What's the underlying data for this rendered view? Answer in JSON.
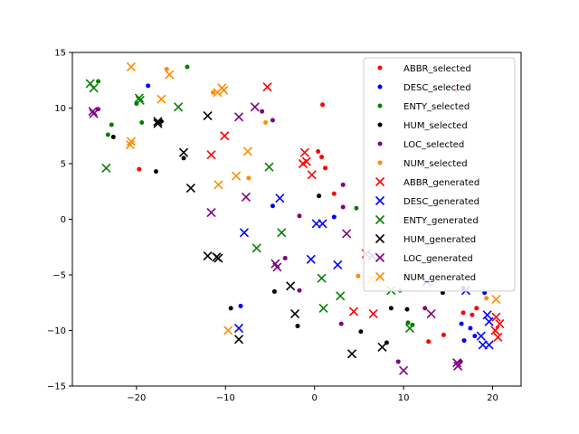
{
  "chart_data": {
    "type": "scatter",
    "title": "",
    "xlabel": "",
    "ylabel": "",
    "xlim": [
      -27.2,
      23.2
    ],
    "ylim": [
      -15,
      15
    ],
    "x_ticks": [
      -20,
      -10,
      0,
      10,
      20
    ],
    "y_ticks": [
      -15,
      -10,
      -5,
      0,
      5,
      10,
      15
    ],
    "x_tick_labels": [
      "−20",
      "−10",
      "0",
      "10",
      "20"
    ],
    "y_tick_labels": [
      "−15",
      "−10",
      "−5",
      "0",
      "5",
      "10",
      "15"
    ],
    "grid": false,
    "legend_position": "upper-right",
    "series": [
      {
        "name": "ABBR_selected",
        "marker": "dot",
        "color": "#ff0000",
        "points": [
          [
            0.4,
            6.1
          ],
          [
            0.8,
            5.6
          ],
          [
            1.2,
            4.6
          ],
          [
            2.2,
            2.3
          ],
          [
            0.9,
            10.3
          ],
          [
            -19.7,
            4.5
          ],
          [
            15.9,
            11.6
          ],
          [
            17.7,
            -8.6
          ],
          [
            18.2,
            -8.0
          ],
          [
            12.8,
            -11.0
          ],
          [
            14.5,
            -10.4
          ],
          [
            16.7,
            -8.4
          ]
        ]
      },
      {
        "name": "DESC_selected",
        "marker": "dot",
        "color": "#0000ff",
        "points": [
          [
            -18.7,
            12.0
          ],
          [
            -4.7,
            1.2
          ],
          [
            2.2,
            0.2
          ],
          [
            17.5,
            -9.8
          ],
          [
            18.0,
            -10.5
          ],
          [
            16.5,
            -9.4
          ],
          [
            16.8,
            -10.9
          ],
          [
            -8.3,
            -7.8
          ],
          [
            19.1,
            -6.6
          ]
        ]
      },
      {
        "name": "ENTY_selected",
        "marker": "dot",
        "color": "#008000",
        "points": [
          [
            -24.3,
            12.4
          ],
          [
            -23.2,
            7.6
          ],
          [
            -22.8,
            8.5
          ],
          [
            -20.0,
            10.4
          ],
          [
            -19.4,
            8.7
          ],
          [
            -14.3,
            13.7
          ],
          [
            4.7,
            1.0
          ],
          [
            11.0,
            -9.5
          ],
          [
            9.6,
            -6.4
          ],
          [
            10.5,
            -9.3
          ]
        ]
      },
      {
        "name": "HUM_selected",
        "marker": "dot",
        "color": "#000000",
        "points": [
          [
            -22.6,
            7.4
          ],
          [
            -17.8,
            4.3
          ],
          [
            -17.2,
            8.8
          ],
          [
            -14.7,
            5.5
          ],
          [
            0.5,
            2.1
          ],
          [
            -9.4,
            -8.0
          ],
          [
            -4.5,
            -6.5
          ],
          [
            -1.9,
            -9.6
          ],
          [
            5.2,
            -10.1
          ],
          [
            8.1,
            -11.1
          ],
          [
            8.6,
            -8.0
          ],
          [
            10.4,
            -8.1
          ],
          [
            14.4,
            -6.6
          ],
          [
            16.7,
            -6.2
          ]
        ]
      },
      {
        "name": "LOC_selected",
        "marker": "dot",
        "color": "#800080",
        "points": [
          [
            -24.3,
            9.9
          ],
          [
            -5.9,
            9.7
          ],
          [
            -4.7,
            8.9
          ],
          [
            -1.7,
            0.3
          ],
          [
            -1.7,
            -6.4
          ],
          [
            -3.3,
            -3.5
          ],
          [
            3.2,
            3.1
          ],
          [
            3.2,
            1.1
          ],
          [
            3.0,
            -9.4
          ],
          [
            9.4,
            -12.8
          ],
          [
            12.4,
            -8.0
          ],
          [
            16.4,
            -12.8
          ]
        ]
      },
      {
        "name": "NUM_selected",
        "marker": "dot",
        "color": "#ff8c00",
        "points": [
          [
            -16.6,
            13.5
          ],
          [
            -11.4,
            11.4
          ],
          [
            -7.4,
            3.7
          ],
          [
            -5.5,
            8.7
          ],
          [
            4.9,
            -5.1
          ],
          [
            19.3,
            -7.1
          ]
        ]
      },
      {
        "name": "ABBR_generated",
        "marker": "x",
        "color": "#ff0000",
        "points": [
          [
            -5.3,
            11.9
          ],
          [
            -10.1,
            7.5
          ],
          [
            -11.6,
            5.8
          ],
          [
            -1.1,
            6.0
          ],
          [
            -0.9,
            5.2
          ],
          [
            -1.3,
            5.0
          ],
          [
            -0.3,
            4.0
          ],
          [
            5.8,
            -3.1
          ],
          [
            4.4,
            -8.3
          ],
          [
            6.6,
            -8.5
          ],
          [
            20.4,
            -8.8
          ],
          [
            20.8,
            -9.4
          ],
          [
            20.3,
            -10.0
          ],
          [
            20.6,
            -10.6
          ]
        ]
      },
      {
        "name": "DESC_generated",
        "marker": "x",
        "color": "#0000ff",
        "points": [
          [
            -3.9,
            1.9
          ],
          [
            -7.9,
            -1.2
          ],
          [
            0.2,
            -0.4
          ],
          [
            0.9,
            -0.4
          ],
          [
            -0.4,
            -3.6
          ],
          [
            2.6,
            -4.1
          ],
          [
            6.5,
            -3.3
          ],
          [
            12.6,
            -5.6
          ],
          [
            17.0,
            -6.4
          ],
          [
            -8.5,
            -9.8
          ],
          [
            19.4,
            -8.6
          ],
          [
            19.6,
            -9.2
          ],
          [
            18.7,
            -10.5
          ],
          [
            18.9,
            -11.3
          ],
          [
            19.6,
            -11.3
          ]
        ]
      },
      {
        "name": "ENTY_generated",
        "marker": "x",
        "color": "#008000",
        "points": [
          [
            -25.2,
            12.2
          ],
          [
            -24.8,
            11.8
          ],
          [
            -19.6,
            10.7
          ],
          [
            -19.7,
            10.9
          ],
          [
            -15.3,
            10.1
          ],
          [
            -23.4,
            4.6
          ],
          [
            -5.1,
            4.7
          ],
          [
            -6.5,
            -2.6
          ],
          [
            -3.7,
            -1.2
          ],
          [
            0.8,
            -5.3
          ],
          [
            1.0,
            -8.0
          ],
          [
            2.9,
            -6.9
          ],
          [
            8.6,
            -6.4
          ],
          [
            10.7,
            -9.8
          ]
        ]
      },
      {
        "name": "HUM_generated",
        "marker": "x",
        "color": "#000000",
        "points": [
          [
            -17.6,
            8.8
          ],
          [
            -17.6,
            8.6
          ],
          [
            -12.0,
            9.3
          ],
          [
            -14.7,
            6.0
          ],
          [
            -13.9,
            2.8
          ],
          [
            -12.0,
            -3.3
          ],
          [
            -11.0,
            -3.4
          ],
          [
            -10.8,
            -3.5
          ],
          [
            -2.7,
            -6.0
          ],
          [
            -2.2,
            -8.5
          ],
          [
            -8.5,
            -10.8
          ],
          [
            4.2,
            -12.1
          ],
          [
            7.6,
            -11.5
          ]
        ]
      },
      {
        "name": "LOC_generated",
        "marker": "x",
        "color": "#800080",
        "points": [
          [
            -24.9,
            9.7
          ],
          [
            -24.8,
            9.5
          ],
          [
            -8.5,
            9.2
          ],
          [
            -6.7,
            10.1
          ],
          [
            -7.7,
            2.0
          ],
          [
            -11.6,
            0.6
          ],
          [
            -4.4,
            -4.0
          ],
          [
            -4.2,
            -4.3
          ],
          [
            3.6,
            -1.3
          ],
          [
            13.1,
            -8.5
          ],
          [
            10.0,
            -13.6
          ],
          [
            16.0,
            -12.9
          ],
          [
            16.1,
            -13.2
          ]
        ]
      },
      {
        "name": "NUM_generated",
        "marker": "x",
        "color": "#ff8c00",
        "points": [
          [
            -20.6,
            13.7
          ],
          [
            -16.3,
            13.0
          ],
          [
            -17.2,
            10.8
          ],
          [
            -20.6,
            7.0
          ],
          [
            -20.7,
            6.7
          ],
          [
            -10.4,
            11.8
          ],
          [
            -10.2,
            11.6
          ],
          [
            -10.9,
            11.4
          ],
          [
            -7.5,
            6.1
          ],
          [
            -8.8,
            3.9
          ],
          [
            -10.8,
            3.1
          ],
          [
            -9.7,
            -10.0
          ],
          [
            6.4,
            -5.4
          ],
          [
            20.4,
            -7.2
          ]
        ]
      }
    ]
  }
}
